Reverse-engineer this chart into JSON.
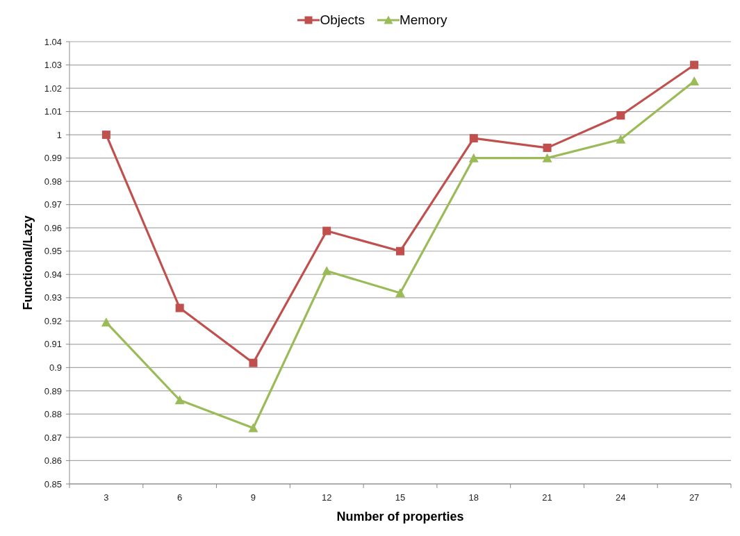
{
  "chart_data": {
    "type": "line",
    "xlabel": "Number of properties",
    "ylabel": "Functional/Lazy",
    "categories": [
      "3",
      "6",
      "9",
      "12",
      "15",
      "18",
      "21",
      "24",
      "27"
    ],
    "series": [
      {
        "name": "Objects",
        "color": "#c0504d",
        "marker": "square",
        "values": [
          1.0,
          0.9256,
          0.902,
          0.9587,
          0.95,
          0.9985,
          0.9944,
          1.0083,
          1.03
        ]
      },
      {
        "name": "Memory",
        "color": "#9bbb59",
        "marker": "triangle",
        "values": [
          0.9194,
          0.886,
          0.874,
          0.9415,
          0.932,
          0.99,
          0.99,
          0.998,
          1.023
        ]
      }
    ],
    "ylim": [
      0.85,
      1.04
    ],
    "yticks": [
      0.85,
      0.86,
      0.87,
      0.88,
      0.89,
      0.9,
      0.91,
      0.92,
      0.93,
      0.94,
      0.95,
      0.96,
      0.97,
      0.98,
      0.99,
      1,
      1.01,
      1.02,
      1.03,
      1.04
    ],
    "grid": "y",
    "legend": "top",
    "line_style": "solid"
  }
}
